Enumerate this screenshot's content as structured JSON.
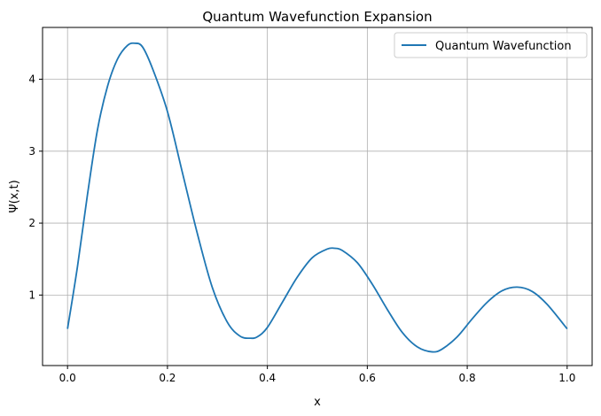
{
  "chart_data": {
    "type": "line",
    "title": "Quantum Wavefunction Expansion",
    "xlabel": "x",
    "ylabel": "Ψ(x,t)",
    "xlim": [
      -0.05,
      1.05
    ],
    "ylim": [
      0.02,
      4.72
    ],
    "xticks": [
      0.0,
      0.2,
      0.4,
      0.6,
      0.8,
      1.0
    ],
    "xtick_labels": [
      "0.0",
      "0.2",
      "0.4",
      "0.6",
      "0.8",
      "1.0"
    ],
    "yticks": [
      1,
      2,
      3,
      4
    ],
    "ytick_labels": [
      "1",
      "2",
      "3",
      "4"
    ],
    "grid": true,
    "legend_position": "top-right",
    "series": [
      {
        "name": "Quantum Wavefunction",
        "color": "#1f77b4",
        "x": [
          0.0,
          0.02,
          0.04,
          0.06,
          0.08,
          0.1,
          0.12,
          0.135,
          0.15,
          0.17,
          0.2,
          0.23,
          0.26,
          0.29,
          0.32,
          0.345,
          0.365,
          0.38,
          0.4,
          0.43,
          0.46,
          0.49,
          0.52,
          0.535,
          0.55,
          0.58,
          0.61,
          0.64,
          0.67,
          0.7,
          0.73,
          0.75,
          0.78,
          0.81,
          0.84,
          0.87,
          0.9,
          0.93,
          0.96,
          1.0
        ],
        "y": [
          0.53,
          1.4,
          2.4,
          3.3,
          3.9,
          4.28,
          4.47,
          4.5,
          4.45,
          4.15,
          3.55,
          2.7,
          1.85,
          1.1,
          0.62,
          0.43,
          0.4,
          0.42,
          0.55,
          0.9,
          1.25,
          1.52,
          1.64,
          1.65,
          1.62,
          1.45,
          1.15,
          0.8,
          0.48,
          0.28,
          0.21,
          0.25,
          0.42,
          0.67,
          0.9,
          1.06,
          1.11,
          1.05,
          0.87,
          0.53
        ]
      }
    ]
  }
}
